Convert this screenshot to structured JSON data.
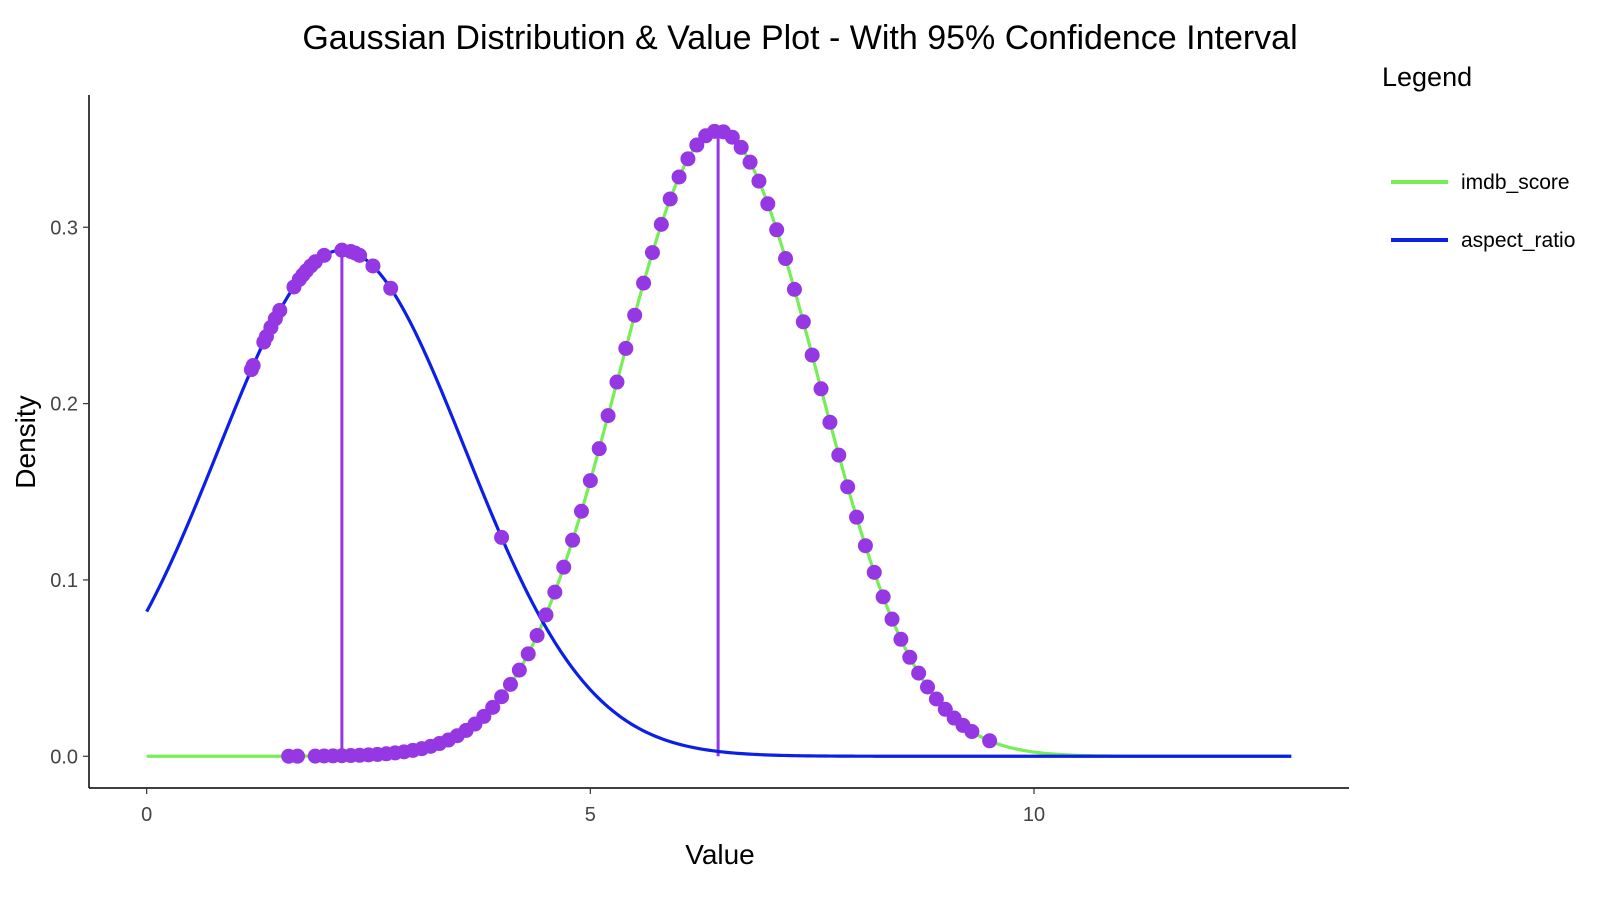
{
  "chart_data": {
    "type": "line",
    "title": "Gaussian Distribution & Value Plot - With 95% Confidence Interval",
    "xlabel": "Value",
    "ylabel": "Density",
    "xlim": [
      -0.65,
      13.55
    ],
    "ylim": [
      -0.018,
      0.375
    ],
    "x_ticks": [
      0,
      5,
      10
    ],
    "x_tick_labels": [
      "0",
      "5",
      "10"
    ],
    "y_ticks": [
      0.0,
      0.1,
      0.2,
      0.3
    ],
    "y_tick_labels": [
      "0.0",
      "0.1",
      "0.2",
      "0.3"
    ],
    "grid": false,
    "legend": {
      "title": "Legend",
      "position": "right"
    },
    "series": [
      {
        "name": "imdb_score",
        "color": "#77ee55",
        "kind": "normal-density",
        "mean": 6.44,
        "sd": 1.125,
        "x_range": [
          0,
          12.9
        ]
      },
      {
        "name": "aspect_ratio",
        "color": "#0b1fe6",
        "kind": "normal-density",
        "mean": 2.2,
        "sd": 1.39,
        "x_range": [
          0,
          12.9
        ]
      }
    ],
    "points": {
      "color": "#9537e3",
      "aspect_ratio_x": [
        1.18,
        1.2,
        1.32,
        1.35,
        1.4,
        1.45,
        1.5,
        1.66,
        1.72,
        1.76,
        1.8,
        1.85,
        1.9,
        2.0,
        2.2,
        2.3,
        2.35,
        2.4,
        2.55,
        2.75,
        4.0
      ],
      "imdb_score_x": [
        1.6,
        1.7,
        1.9,
        2.0,
        2.1,
        2.2,
        2.3,
        2.4,
        2.5,
        2.6,
        2.7,
        2.8,
        2.9,
        3.0,
        3.1,
        3.2,
        3.3,
        3.4,
        3.5,
        3.6,
        3.7,
        3.8,
        3.9,
        4.0,
        4.1,
        4.2,
        4.3,
        4.4,
        4.5,
        4.6,
        4.7,
        4.8,
        4.9,
        5.0,
        5.1,
        5.2,
        5.3,
        5.4,
        5.5,
        5.6,
        5.7,
        5.8,
        5.9,
        6.0,
        6.1,
        6.2,
        6.3,
        6.4,
        6.5,
        6.6,
        6.7,
        6.8,
        6.9,
        7.0,
        7.1,
        7.2,
        7.3,
        7.4,
        7.5,
        7.6,
        7.7,
        7.8,
        7.9,
        8.0,
        8.1,
        8.2,
        8.3,
        8.4,
        8.5,
        8.6,
        8.7,
        8.8,
        8.9,
        9.0,
        9.1,
        9.2,
        9.3,
        9.5
      ]
    },
    "mean_lines": [
      {
        "x": 2.2,
        "y": 0.289,
        "color": "#9537e3"
      },
      {
        "x": 6.44,
        "y": 0.355,
        "color": "#9537e3"
      }
    ]
  }
}
